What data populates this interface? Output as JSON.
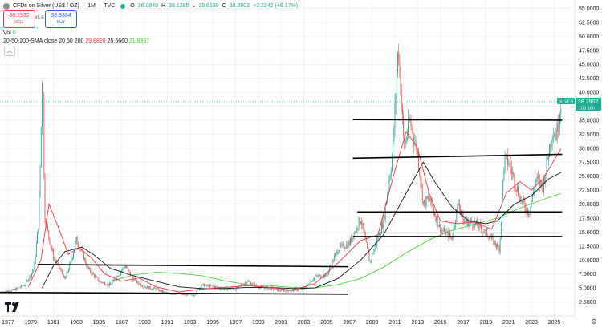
{
  "header": {
    "symbol": "CFDs on Silver (US$ / OZ)",
    "interval": "1M",
    "exchange": "TVC",
    "o_label": "O",
    "o": "36.0840",
    "h_label": "H",
    "h": "39.1265",
    "l_label": "L",
    "l": "35.6139",
    "c_label": "C",
    "c": "38.2902",
    "change": "+2.2242 (+6.17%)"
  },
  "trade": {
    "sell_price": "38.2932",
    "sell_label": "SELL",
    "buy_price": "38.3384",
    "buy_label": "BUY",
    "spread": "45.6"
  },
  "indicators": {
    "vol_label": "Vol",
    "vol_value": "0",
    "sma_label": "20-50-200-SMA close 20 50 200",
    "sma20": "29.8828",
    "sma50": "25.6660",
    "sma200": "21.9357",
    "collapse_icon": "chevron-up-icon"
  },
  "price_badge": {
    "name": "SILVER",
    "price": "38.2902",
    "countdown": "10d 18h"
  },
  "colors": {
    "up": "#26a69a",
    "down": "#ef5350",
    "sma20": "#f23645",
    "sma50": "#131722",
    "sma200": "#4cd137",
    "badge": "#22ab94"
  },
  "chart_data": {
    "type": "candlestick",
    "title": "CFDs on Silver (US$ / OZ) · 1M · TVC",
    "x_tick_labels": [
      "1977",
      "1979",
      "1981",
      "1983",
      "1985",
      "1987",
      "1989",
      "1991",
      "1993",
      "1995",
      "1997",
      "1999",
      "2001",
      "2003",
      "2005",
      "2007",
      "2009",
      "2011",
      "2013",
      "2015",
      "2017",
      "2019",
      "2021",
      "2023",
      "2025"
    ],
    "y_tick_labels": [
      "2.5000",
      "5.0000",
      "7.5000",
      "10.0000",
      "12.5000",
      "15.0000",
      "17.5000",
      "20.0000",
      "22.5000",
      "25.0000",
      "27.5000",
      "30.0000",
      "32.5000",
      "35.0000",
      "37.5000",
      "40.0000",
      "42.5000",
      "45.0000",
      "47.5000",
      "50.0000",
      "52.5000",
      "55.0000"
    ],
    "xlim": [
      1976.3,
      2026.8
    ],
    "ylim": [
      0,
      56.5
    ],
    "log_scale": false,
    "grid": true,
    "price_path": [
      [
        1976.5,
        4.3
      ],
      [
        1977.5,
        4.6
      ],
      [
        1978.5,
        5.6
      ],
      [
        1979.3,
        8.5
      ],
      [
        1979.7,
        17
      ],
      [
        1979.9,
        32
      ],
      [
        1980.05,
        48
      ],
      [
        1980.2,
        18
      ],
      [
        1980.5,
        15
      ],
      [
        1981,
        10.5
      ],
      [
        1981.5,
        8.6
      ],
      [
        1982,
        6.5
      ],
      [
        1982.5,
        9.5
      ],
      [
        1983,
        13.5
      ],
      [
        1983.5,
        11.5
      ],
      [
        1984,
        8.5
      ],
      [
        1985,
        6.2
      ],
      [
        1986,
        5.5
      ],
      [
        1987.3,
        9
      ],
      [
        1988,
        6.5
      ],
      [
        1989,
        5.2
      ],
      [
        1990,
        4.8
      ],
      [
        1991,
        4
      ],
      [
        1992,
        3.9
      ],
      [
        1993.3,
        3.7
      ],
      [
        1994,
        5.5
      ],
      [
        1995,
        5.2
      ],
      [
        1996,
        5
      ],
      [
        1997,
        4.8
      ],
      [
        1998,
        6.2
      ],
      [
        1999,
        5.2
      ],
      [
        2000,
        5
      ],
      [
        2001,
        4.5
      ],
      [
        2002,
        4.6
      ],
      [
        2003,
        4.9
      ],
      [
        2004,
        7
      ],
      [
        2005,
        7.3
      ],
      [
        2006,
        12
      ],
      [
        2007,
        13
      ],
      [
        2008,
        17.5
      ],
      [
        2008.8,
        9.5
      ],
      [
        2009.5,
        14
      ],
      [
        2010,
        17
      ],
      [
        2010.8,
        29
      ],
      [
        2011.3,
        48.5
      ],
      [
        2011.8,
        30
      ],
      [
        2012.3,
        35
      ],
      [
        2013,
        29
      ],
      [
        2013.5,
        20
      ],
      [
        2014,
        21
      ],
      [
        2015,
        15.5
      ],
      [
        2016,
        14
      ],
      [
        2016.6,
        20.5
      ],
      [
        2017,
        17
      ],
      [
        2018,
        16.5
      ],
      [
        2019,
        15
      ],
      [
        2020.2,
        12
      ],
      [
        2020.6,
        28
      ],
      [
        2021,
        27.5
      ],
      [
        2022,
        21
      ],
      [
        2022.8,
        18.5
      ],
      [
        2023.4,
        24.5
      ],
      [
        2024,
        23
      ],
      [
        2024.8,
        33
      ],
      [
        2025.2,
        32.5
      ],
      [
        2025.6,
        38.3
      ]
    ],
    "series": [
      {
        "name": "SMA 20",
        "values": [
          [
            1978.8,
            5.2
          ],
          [
            1979.9,
            10
          ],
          [
            1980.6,
            20
          ],
          [
            1981.4,
            16
          ],
          [
            1982.3,
            11
          ],
          [
            1983.2,
            12.2
          ],
          [
            1984.3,
            10.5
          ],
          [
            1985.5,
            7.5
          ],
          [
            1987,
            6.2
          ],
          [
            1988.5,
            6.8
          ],
          [
            1990,
            5.2
          ],
          [
            1992,
            4.3
          ],
          [
            1994,
            4.8
          ],
          [
            1996,
            5.1
          ],
          [
            1998,
            5.4
          ],
          [
            2000,
            5.1
          ],
          [
            2002,
            4.6
          ],
          [
            2004,
            5.8
          ],
          [
            2006,
            9.5
          ],
          [
            2008,
            13.5
          ],
          [
            2009.5,
            14.5
          ],
          [
            2011,
            26
          ],
          [
            2012,
            33
          ],
          [
            2013,
            30
          ],
          [
            2014,
            22
          ],
          [
            2015,
            17
          ],
          [
            2016.5,
            16.5
          ],
          [
            2018,
            16.8
          ],
          [
            2019.5,
            15.5
          ],
          [
            2020.8,
            22
          ],
          [
            2022,
            24
          ],
          [
            2023,
            22.5
          ],
          [
            2024,
            24.5
          ],
          [
            2025.6,
            29.88
          ]
        ]
      },
      {
        "name": "SMA 50",
        "values": [
          [
            1980,
            5
          ],
          [
            1981,
            9
          ],
          [
            1982,
            11.5
          ],
          [
            1983.5,
            12.3
          ],
          [
            1984.5,
            11
          ],
          [
            1986,
            8.5
          ],
          [
            1988,
            7.2
          ],
          [
            1990,
            6.2
          ],
          [
            1992,
            5.2
          ],
          [
            1994,
            4.9
          ],
          [
            1996,
            4.9
          ],
          [
            1998,
            5.1
          ],
          [
            2000,
            5.1
          ],
          [
            2002,
            4.9
          ],
          [
            2004,
            5
          ],
          [
            2006,
            6.7
          ],
          [
            2008,
            10
          ],
          [
            2010,
            14.5
          ],
          [
            2012,
            22
          ],
          [
            2013.5,
            27.5
          ],
          [
            2014.5,
            24
          ],
          [
            2016,
            19.5
          ],
          [
            2017.5,
            17
          ],
          [
            2019,
            16.5
          ],
          [
            2020,
            17
          ],
          [
            2021.5,
            20
          ],
          [
            2023,
            21.5
          ],
          [
            2024.5,
            24.5
          ],
          [
            2025.6,
            25.67
          ]
        ]
      },
      {
        "name": "SMA 200",
        "values": [
          [
            1986,
            6.2
          ],
          [
            1988,
            7.3
          ],
          [
            1990,
            7.8
          ],
          [
            1992,
            7.6
          ],
          [
            1994,
            7.2
          ],
          [
            1996,
            6.3
          ],
          [
            1998,
            5.6
          ],
          [
            2000,
            5.4
          ],
          [
            2002,
            5.1
          ],
          [
            2004,
            5.0
          ],
          [
            2006,
            5.6
          ],
          [
            2008,
            6.7
          ],
          [
            2010,
            8.7
          ],
          [
            2012,
            11.3
          ],
          [
            2014,
            13.6
          ],
          [
            2016,
            15.3
          ],
          [
            2018,
            16.4
          ],
          [
            2020,
            17.5
          ],
          [
            2022,
            19.3
          ],
          [
            2024,
            20.8
          ],
          [
            2025.6,
            21.94
          ]
        ]
      }
    ],
    "annotation_lines": [
      {
        "x1": 1976.3,
        "y1": 4.2,
        "x2": 2006.9,
        "y2": 3.9
      },
      {
        "x1": 1979.6,
        "y1": 9.2,
        "x2": 2006.9,
        "y2": 8.8
      },
      {
        "x1": 2007.3,
        "y1": 14.2,
        "x2": 2025.7,
        "y2": 14.2
      },
      {
        "x1": 2007.7,
        "y1": 18.6,
        "x2": 2025.7,
        "y2": 18.6
      },
      {
        "x1": 2007.3,
        "y1": 28.2,
        "x2": 2025.7,
        "y2": 28.9
      },
      {
        "x1": 2007.3,
        "y1": 35.1,
        "x2": 2025.7,
        "y2": 35.0
      }
    ],
    "last_price": 38.2902
  }
}
